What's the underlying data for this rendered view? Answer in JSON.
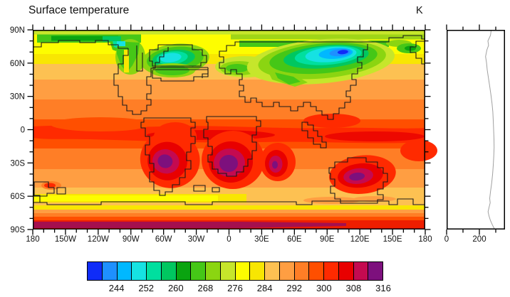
{
  "title": "Surface temperature",
  "units_label": "K",
  "chart_data": {
    "type": "heatmap",
    "subtype": "filled-contour-global-map-with-zonal-mean-profile",
    "title": "Surface temperature",
    "units": "K",
    "x_axis": {
      "tick_labels": [
        "180",
        "150W",
        "120W",
        "90W",
        "60W",
        "30W",
        "0",
        "30E",
        "60E",
        "90E",
        "120E",
        "150E",
        "180"
      ],
      "range_deg": [
        -180,
        180
      ],
      "major_tick_deg": 30,
      "minor_tick_deg": 10
    },
    "y_axis": {
      "tick_labels": [
        "90N",
        "60N",
        "30N",
        "0",
        "30S",
        "60S",
        "90S"
      ],
      "range_deg": [
        -90,
        90
      ],
      "major_tick_deg": 30,
      "minor_tick_deg": 10
    },
    "colorbar": {
      "labels": [
        "244",
        "252",
        "260",
        "268",
        "276",
        "284",
        "292",
        "300",
        "308",
        "316"
      ],
      "fill_levels": [
        240,
        244,
        248,
        252,
        256,
        260,
        264,
        268,
        272,
        276,
        280,
        284,
        288,
        292,
        296,
        300,
        304,
        308,
        312,
        316
      ],
      "colors": [
        "#0f2cf8",
        "#1e90ff",
        "#00b8ff",
        "#16e2e2",
        "#00df9f",
        "#00c760",
        "#0aa410",
        "#45c717",
        "#8bd511",
        "#c6e62b",
        "#fdfd00",
        "#f8e602",
        "#fdc152",
        "#ff9e42",
        "#ff7e26",
        "#ff4f00",
        "#ff2a00",
        "#e80000",
        "#c40a50",
        "#7d107d"
      ]
    },
    "map_features": [
      {
        "name": "arctic cool band",
        "lat": "76N-88N",
        "lon": "global",
        "approx_K": 270
      },
      {
        "name": "Greenland / Labrador cold anomaly",
        "lat": "55N-72N",
        "lon": "75W-35W",
        "approx_min_K": 253
      },
      {
        "name": "North America cool tongue",
        "lat": "45N-80N",
        "lon": "105W-85W",
        "approx_min_K": 266
      },
      {
        "name": "Siberian cold core",
        "lat": "58N-75N",
        "lon": "60E-125E",
        "approx_min_K": 241
      },
      {
        "name": "Europe cool patch",
        "lat": "48N-58N",
        "lon": "5W-20E",
        "approx_min_K": 272
      },
      {
        "name": "equatorial warm band",
        "lat": "8N-16S",
        "lon": "global",
        "approx_K": 305
      },
      {
        "name": "South America hot spot",
        "lat": "~28S",
        "lon": "~58W",
        "approx_max_K": 318
      },
      {
        "name": "South Atlantic / Africa hot spot",
        "lat": "~28S",
        "lon": "8W-12E",
        "approx_max_K": 318
      },
      {
        "name": "East Africa hot spot",
        "lat": "~32S",
        "lon": "~42E",
        "approx_max_K": 317
      },
      {
        "name": "Australia hot spot",
        "lat": "~40S",
        "lon": "100E-135E",
        "approx_max_K": 318
      },
      {
        "name": "Antarctic hot band",
        "lat": "80S-90S",
        "lon": "global",
        "approx_max_K": 314
      }
    ],
    "zonal_profile": {
      "x_tick_labels": [
        "0",
        "200"
      ],
      "x_major_ticks_K": [
        0,
        200
      ],
      "x_minor_ticks_K": [
        100,
        300
      ],
      "points_lat_K": [
        [
          90,
          272
        ],
        [
          85,
          268
        ],
        [
          80,
          252
        ],
        [
          76,
          256
        ],
        [
          72,
          246
        ],
        [
          66,
          238
        ],
        [
          60,
          244
        ],
        [
          54,
          248
        ],
        [
          48,
          254
        ],
        [
          40,
          262
        ],
        [
          32,
          270
        ],
        [
          24,
          277
        ],
        [
          16,
          282
        ],
        [
          8,
          285
        ],
        [
          0,
          287
        ],
        [
          -8,
          289
        ],
        [
          -16,
          290
        ],
        [
          -24,
          288
        ],
        [
          -32,
          285
        ],
        [
          -40,
          281
        ],
        [
          -48,
          275
        ],
        [
          -56,
          268
        ],
        [
          -62,
          263
        ],
        [
          -66,
          266
        ],
        [
          -70,
          259
        ],
        [
          -74,
          253
        ],
        [
          -78,
          259
        ],
        [
          -82,
          268
        ],
        [
          -86,
          280
        ],
        [
          -90,
          294
        ]
      ]
    }
  }
}
